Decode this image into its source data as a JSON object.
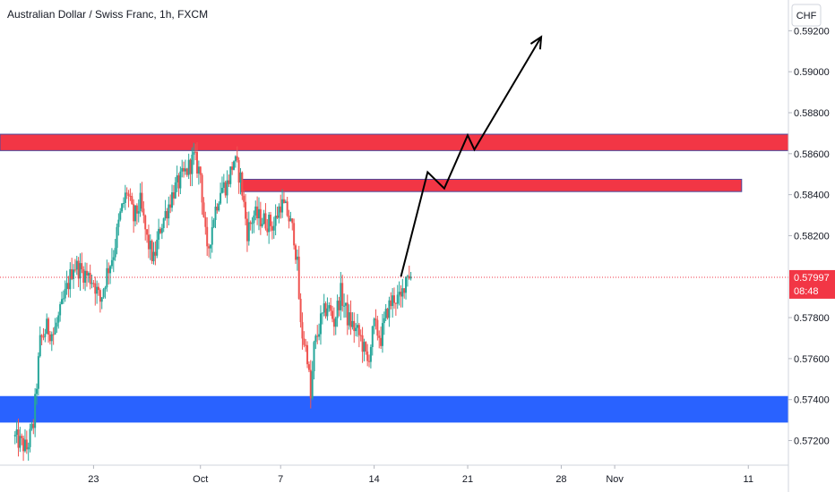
{
  "header": {
    "title": "Australian Dollar / Swiss Franc, 1h, FXCM",
    "currency_button": "CHF"
  },
  "colors": {
    "up": "#26a69a",
    "down": "#ef5350",
    "resistance_zone": "#f23645",
    "support_zone": "#2962ff",
    "projection": "#000000",
    "price_tag": "#f23645"
  },
  "chart_data": {
    "type": "candlestick",
    "title": "Australian Dollar / Swiss Franc, 1h, FXCM",
    "y_ticks": [
      "0.59200",
      "0.59000",
      "0.58800",
      "0.58600",
      "0.58400",
      "0.58200",
      "0.57800",
      "0.57600",
      "0.57400",
      "0.57200"
    ],
    "y_tick_values": [
      0.592,
      0.59,
      0.588,
      0.586,
      0.584,
      0.582,
      0.578,
      0.576,
      0.574,
      0.572
    ],
    "ylim": [
      0.5708,
      0.5935
    ],
    "x_ticks": [
      {
        "label": "23",
        "date": "2024-09-23"
      },
      {
        "label": "Oct",
        "date": "2024-10-01"
      },
      {
        "label": "7",
        "date": "2024-10-07"
      },
      {
        "label": "14",
        "date": "2024-10-14"
      },
      {
        "label": "21",
        "date": "2024-10-21"
      },
      {
        "label": "28",
        "date": "2024-10-28"
      },
      {
        "label": "Nov",
        "date": "2024-11-01"
      },
      {
        "label": "11",
        "date": "2024-11-11"
      }
    ],
    "xlim": [
      "2024-09-16T00:00",
      "2024-11-14T00:00"
    ],
    "last_price": {
      "value": 0.57997,
      "label": "0.57997",
      "countdown": "08:48"
    },
    "price_path": [
      [
        "2024-09-17T00:00",
        0.5722
      ],
      [
        "2024-09-18T00:00",
        0.5716
      ],
      [
        "2024-09-18T12:00",
        0.5728
      ],
      [
        "2024-09-19T00:00",
        0.5768
      ],
      [
        "2024-09-19T12:00",
        0.5775
      ],
      [
        "2024-09-20T00:00",
        0.5772
      ],
      [
        "2024-09-20T12:00",
        0.5782
      ],
      [
        "2024-09-21T12:00",
        0.5806
      ],
      [
        "2024-09-23T00:00",
        0.5798
      ],
      [
        "2024-09-23T12:00",
        0.5788
      ],
      [
        "2024-09-24T00:00",
        0.5802
      ],
      [
        "2024-09-24T12:00",
        0.5812
      ],
      [
        "2024-09-25T00:00",
        0.583
      ],
      [
        "2024-09-25T12:00",
        0.5842
      ],
      [
        "2024-09-26T00:00",
        0.5828
      ],
      [
        "2024-09-26T12:00",
        0.5836
      ],
      [
        "2024-09-27T00:00",
        0.5818
      ],
      [
        "2024-09-27T12:00",
        0.5808
      ],
      [
        "2024-09-28T00:00",
        0.5824
      ],
      [
        "2024-09-29T00:00",
        0.5842
      ],
      [
        "2024-09-30T00:00",
        0.5852
      ],
      [
        "2024-09-30T12:00",
        0.5858
      ],
      [
        "2024-10-01T00:00",
        0.585
      ],
      [
        "2024-10-01T12:00",
        0.581
      ],
      [
        "2024-10-02T00:00",
        0.583
      ],
      [
        "2024-10-02T12:00",
        0.5843
      ],
      [
        "2024-10-03T00:00",
        0.5845
      ],
      [
        "2024-10-03T12:00",
        0.5857
      ],
      [
        "2024-10-04T00:00",
        0.5848
      ],
      [
        "2024-10-04T12:00",
        0.5822
      ],
      [
        "2024-10-05T00:00",
        0.583
      ],
      [
        "2024-10-06T12:00",
        0.5825
      ],
      [
        "2024-10-07T00:00",
        0.5836
      ],
      [
        "2024-10-07T12:00",
        0.5831
      ],
      [
        "2024-10-08T00:00",
        0.582
      ],
      [
        "2024-10-08T06:00",
        0.5805
      ],
      [
        "2024-10-08T12:00",
        0.5775
      ],
      [
        "2024-10-09T00:00",
        0.5762
      ],
      [
        "2024-10-09T06:00",
        0.574
      ],
      [
        "2024-10-09T12:00",
        0.5765
      ],
      [
        "2024-10-10T00:00",
        0.5778
      ],
      [
        "2024-10-10T12:00",
        0.5786
      ],
      [
        "2024-10-11T00:00",
        0.5778
      ],
      [
        "2024-10-11T12:00",
        0.5792
      ],
      [
        "2024-10-12T00:00",
        0.578
      ],
      [
        "2024-10-13T00:00",
        0.577
      ],
      [
        "2024-10-13T12:00",
        0.5758
      ],
      [
        "2024-10-14T00:00",
        0.5776
      ],
      [
        "2024-10-14T12:00",
        0.577
      ],
      [
        "2024-10-15T00:00",
        0.5784
      ],
      [
        "2024-10-15T12:00",
        0.579
      ],
      [
        "2024-10-16T00:00",
        0.5788
      ],
      [
        "2024-10-16T06:00",
        0.5797
      ],
      [
        "2024-10-16T12:00",
        0.5803
      ],
      [
        "2024-10-16T18:00",
        0.57997
      ]
    ],
    "zones": [
      {
        "label": "resistance",
        "y_top": 0.58695,
        "y_bottom": 0.58615,
        "x_start": "2024-09-16T00:00",
        "x_end": "2024-11-14T00:00",
        "color": "#f23645"
      },
      {
        "label": "resistance",
        "y_top": 0.58475,
        "y_bottom": 0.58415,
        "x_start": "2024-10-04T00:00",
        "x_end": "2024-11-10T12:00",
        "color": "#f23645"
      },
      {
        "label": "support",
        "y_top": 0.57415,
        "y_bottom": 0.5729,
        "x_start": "2024-09-16T00:00",
        "x_end": "2024-11-14T00:00",
        "color": "#2962ff"
      }
    ],
    "projection_path": [
      [
        "2024-10-16T00:00",
        0.58
      ],
      [
        "2024-10-18T00:00",
        0.5851
      ],
      [
        "2024-10-19T06:00",
        0.5843
      ],
      [
        "2024-10-21T00:00",
        0.5869
      ],
      [
        "2024-10-21T12:00",
        0.5862
      ],
      [
        "2024-10-26T12:00",
        0.5917
      ]
    ],
    "grid": false,
    "legend": "none"
  }
}
